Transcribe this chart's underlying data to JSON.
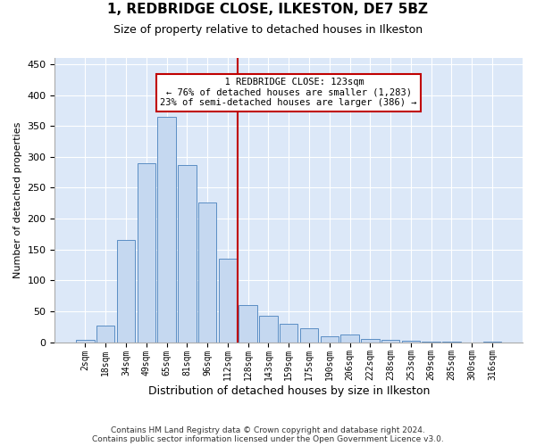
{
  "title_line1": "1, REDBRIDGE CLOSE, ILKESTON, DE7 5BZ",
  "title_line2": "Size of property relative to detached houses in Ilkeston",
  "xlabel": "Distribution of detached houses by size in Ilkeston",
  "ylabel": "Number of detached properties",
  "bar_labels": [
    "2sqm",
    "18sqm",
    "34sqm",
    "49sqm",
    "65sqm",
    "81sqm",
    "96sqm",
    "112sqm",
    "128sqm",
    "143sqm",
    "159sqm",
    "175sqm",
    "190sqm",
    "206sqm",
    "222sqm",
    "238sqm",
    "253sqm",
    "269sqm",
    "285sqm",
    "300sqm",
    "316sqm"
  ],
  "bar_values": [
    3,
    27,
    165,
    290,
    365,
    287,
    226,
    135,
    60,
    43,
    30,
    22,
    10,
    12,
    5,
    3,
    2,
    1,
    1,
    0,
    1
  ],
  "bar_color": "#c5d8f0",
  "bar_edge_color": "#5b8ec4",
  "property_line_index": 7,
  "property_line_color": "#c00000",
  "annotation_title": "1 REDBRIDGE CLOSE: 123sqm",
  "annotation_line1": "← 76% of detached houses are smaller (1,283)",
  "annotation_line2": "23% of semi-detached houses are larger (386) →",
  "annotation_edge_color": "#c00000",
  "ylim": [
    0,
    460
  ],
  "yticks": [
    0,
    50,
    100,
    150,
    200,
    250,
    300,
    350,
    400,
    450
  ],
  "footnote1": "Contains HM Land Registry data © Crown copyright and database right 2024.",
  "footnote2": "Contains public sector information licensed under the Open Government Licence v3.0.",
  "background_color": "#dce8f8",
  "plot_bg_color": "#dce8f8"
}
